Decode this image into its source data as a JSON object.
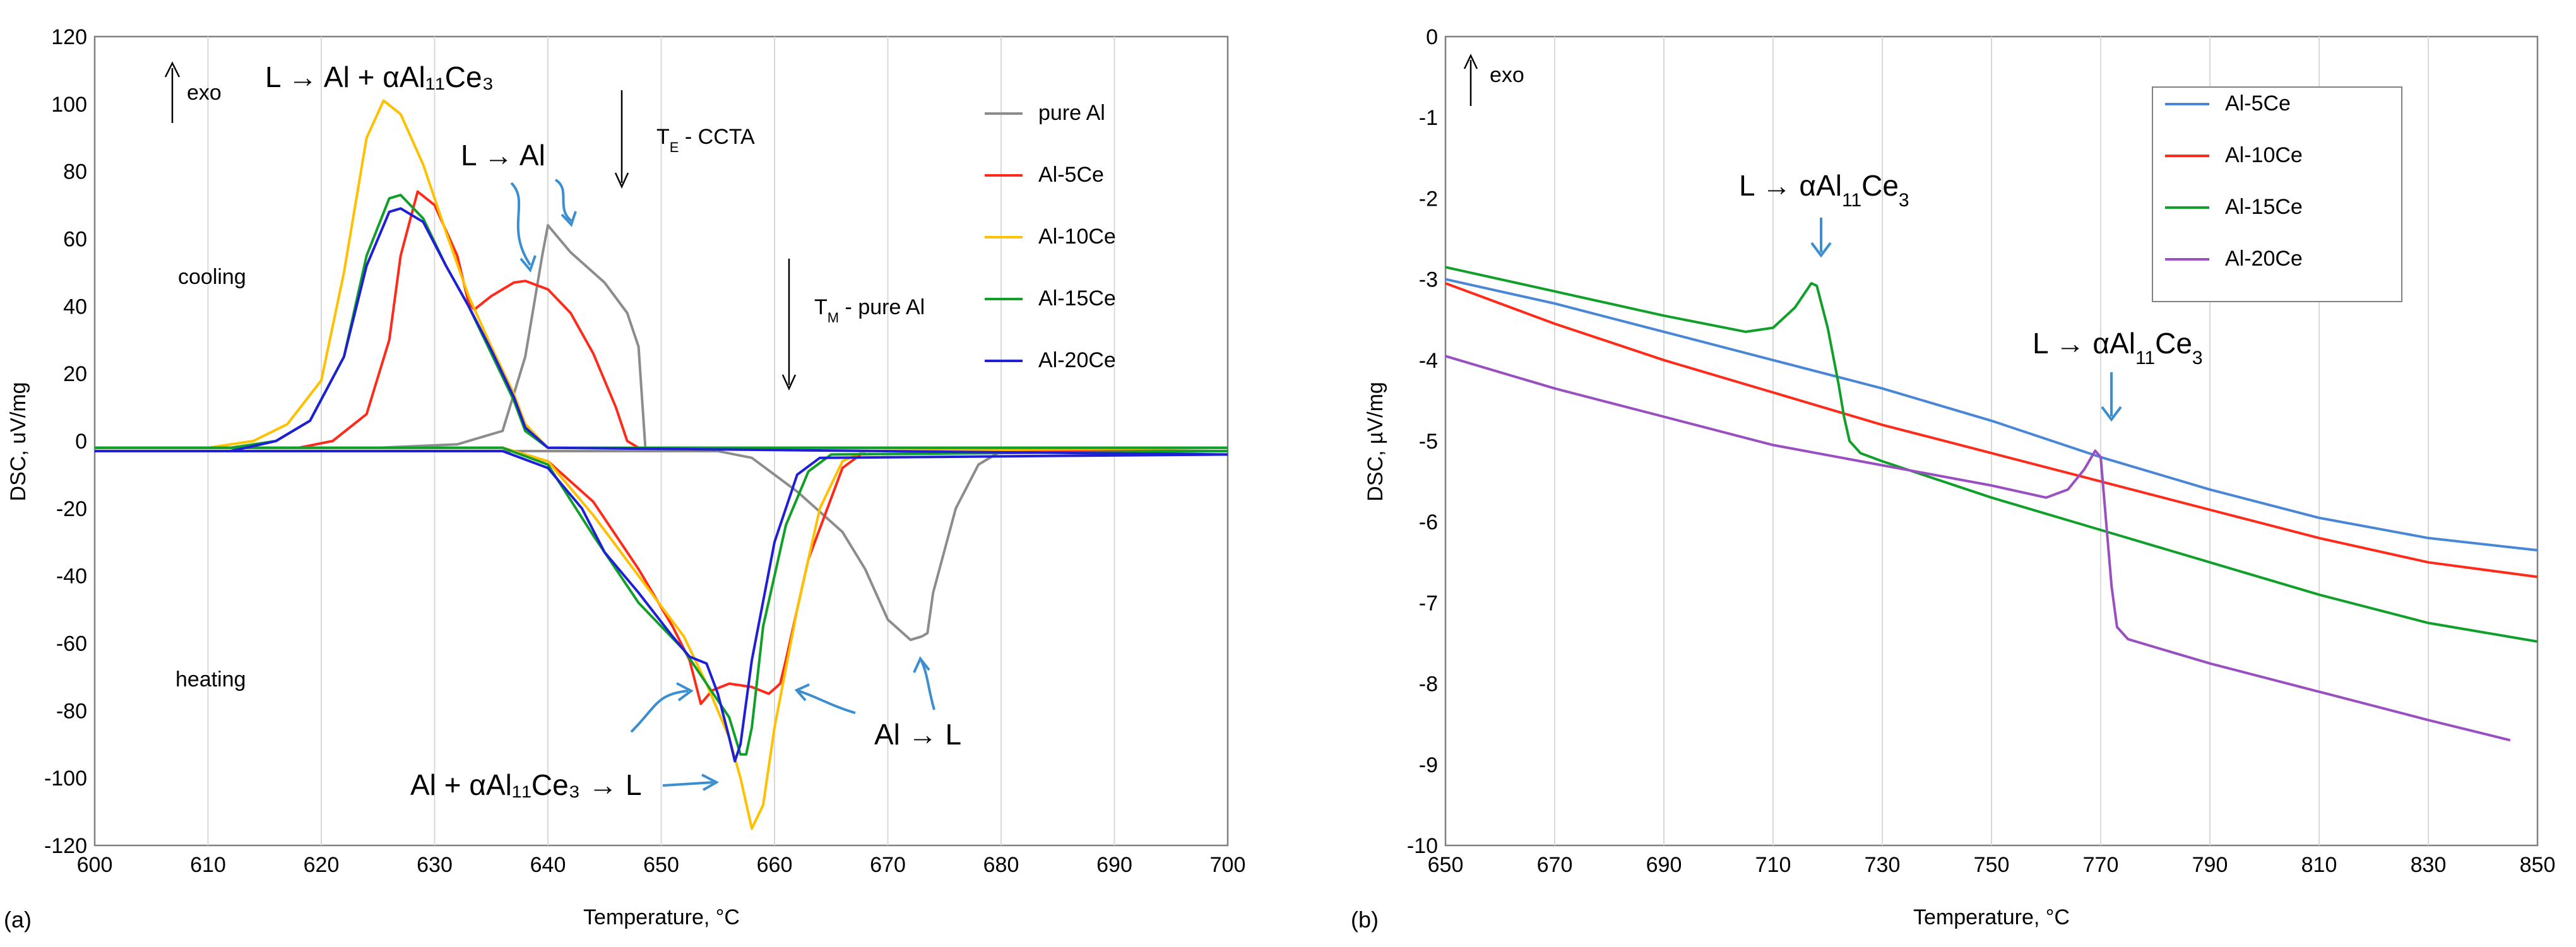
{
  "chart_data": [
    {
      "id": "a",
      "type": "line",
      "panel_label": "(a)",
      "xlabel": "Temperature, °C",
      "ylabel": "DSC, uV/mg",
      "xlim": [
        600,
        700
      ],
      "ylim": [
        -120,
        120
      ],
      "xticks": [
        600,
        610,
        620,
        630,
        640,
        650,
        660,
        670,
        680,
        690,
        700
      ],
      "yticks": [
        120,
        100,
        80,
        60,
        40,
        20,
        0,
        -20,
        -40,
        -60,
        -80,
        -100,
        -120
      ],
      "grid": "vertical",
      "legend": {
        "placement": "top-right",
        "entries": [
          {
            "name": "pure Al",
            "color": "#8c8c8c"
          },
          {
            "name": "Al-5Ce",
            "color": "#ff2a1a"
          },
          {
            "name": "Al-10Ce",
            "color": "#ffc000"
          },
          {
            "name": "Al-15Ce",
            "color": "#10a02a"
          },
          {
            "name": "Al-20Ce",
            "color": "#1f1fd6"
          }
        ]
      },
      "series": [
        {
          "name": "pure Al (cooling)",
          "color": "#8c8c8c",
          "points": [
            [
              600,
              -2
            ],
            [
              625,
              -2
            ],
            [
              632,
              -1
            ],
            [
              636,
              3
            ],
            [
              638,
              25
            ],
            [
              639.5,
              55
            ],
            [
              640,
              64
            ],
            [
              642,
              56
            ],
            [
              645,
              47
            ],
            [
              647,
              38
            ],
            [
              648,
              28
            ],
            [
              648.4,
              8
            ],
            [
              648.6,
              -2
            ],
            [
              700,
              -2
            ]
          ]
        },
        {
          "name": "pure Al (heating)",
          "color": "#8c8c8c",
          "points": [
            [
              600,
              -3
            ],
            [
              655,
              -3
            ],
            [
              658,
              -5
            ],
            [
              662,
              -15
            ],
            [
              666,
              -27
            ],
            [
              668,
              -38
            ],
            [
              670,
              -53
            ],
            [
              671,
              -56
            ],
            [
              672,
              -59
            ],
            [
              673,
              -58
            ],
            [
              673.5,
              -57
            ],
            [
              674,
              -45
            ],
            [
              676,
              -20
            ],
            [
              678,
              -7
            ],
            [
              680,
              -3
            ],
            [
              700,
              -2
            ]
          ]
        },
        {
          "name": "Al-5Ce (cooling)",
          "color": "#ff2a1a",
          "points": [
            [
              600,
              -2
            ],
            [
              618,
              -2
            ],
            [
              621,
              0
            ],
            [
              624,
              8
            ],
            [
              626,
              30
            ],
            [
              627,
              55
            ],
            [
              628.5,
              74
            ],
            [
              630,
              70
            ],
            [
              632,
              55
            ],
            [
              633,
              41
            ],
            [
              633.5,
              39
            ],
            [
              635,
              43
            ],
            [
              637,
              47
            ],
            [
              638,
              47.5
            ],
            [
              640,
              45
            ],
            [
              642,
              38
            ],
            [
              644,
              26
            ],
            [
              646,
              10
            ],
            [
              647,
              0
            ],
            [
              648,
              -2
            ],
            [
              700,
              -2
            ]
          ]
        },
        {
          "name": "Al-5Ce (heating)",
          "color": "#ff2a1a",
          "points": [
            [
              600,
              -2
            ],
            [
              636,
              -2
            ],
            [
              640,
              -6
            ],
            [
              644,
              -18
            ],
            [
              648,
              -38
            ],
            [
              651,
              -55
            ],
            [
              652.5,
              -65
            ],
            [
              653.5,
              -78
            ],
            [
              654.5,
              -74
            ],
            [
              656,
              -72
            ],
            [
              658,
              -73
            ],
            [
              659.5,
              -75
            ],
            [
              660.5,
              -72
            ],
            [
              661,
              -65
            ],
            [
              663,
              -35
            ],
            [
              666,
              -8
            ],
            [
              668,
              -3
            ],
            [
              700,
              -3
            ]
          ]
        },
        {
          "name": "Al-10Ce (cooling)",
          "color": "#ffc000",
          "points": [
            [
              600,
              -2
            ],
            [
              610,
              -2
            ],
            [
              614,
              0
            ],
            [
              617,
              5
            ],
            [
              620,
              18
            ],
            [
              622,
              50
            ],
            [
              624,
              90
            ],
            [
              625.5,
              101
            ],
            [
              627,
              97
            ],
            [
              629,
              82
            ],
            [
              631,
              62
            ],
            [
              633,
              43
            ],
            [
              635,
              28
            ],
            [
              637,
              14
            ],
            [
              638,
              5
            ],
            [
              640,
              -2
            ],
            [
              700,
              -2
            ]
          ]
        },
        {
          "name": "Al-10Ce (heating)",
          "color": "#ffc000",
          "points": [
            [
              600,
              -2
            ],
            [
              636,
              -2
            ],
            [
              640,
              -6
            ],
            [
              644,
              -22
            ],
            [
              648,
              -40
            ],
            [
              652,
              -58
            ],
            [
              654,
              -72
            ],
            [
              656,
              -88
            ],
            [
              657,
              -100
            ],
            [
              658,
              -115
            ],
            [
              659,
              -108
            ],
            [
              660,
              -85
            ],
            [
              662,
              -50
            ],
            [
              664,
              -20
            ],
            [
              666,
              -6
            ],
            [
              668,
              -3
            ],
            [
              700,
              -2
            ]
          ]
        },
        {
          "name": "Al-15Ce (cooling)",
          "color": "#10a02a",
          "points": [
            [
              600,
              -2
            ],
            [
              612,
              -2
            ],
            [
              616,
              0
            ],
            [
              619,
              6
            ],
            [
              622,
              25
            ],
            [
              624,
              55
            ],
            [
              626,
              72
            ],
            [
              627,
              73
            ],
            [
              629,
              66
            ],
            [
              631,
              52
            ],
            [
              633,
              40
            ],
            [
              635,
              26
            ],
            [
              637,
              12
            ],
            [
              638,
              3
            ],
            [
              640,
              -2
            ],
            [
              700,
              -2
            ]
          ]
        },
        {
          "name": "Al-15Ce (heating)",
          "color": "#10a02a",
          "points": [
            [
              600,
              -2
            ],
            [
              636,
              -2
            ],
            [
              640,
              -7
            ],
            [
              644,
              -28
            ],
            [
              648,
              -48
            ],
            [
              652,
              -62
            ],
            [
              654,
              -72
            ],
            [
              656,
              -82
            ],
            [
              657,
              -93
            ],
            [
              657.5,
              -93
            ],
            [
              658,
              -85
            ],
            [
              659,
              -55
            ],
            [
              661,
              -25
            ],
            [
              663,
              -9
            ],
            [
              665,
              -4
            ],
            [
              700,
              -3
            ]
          ]
        },
        {
          "name": "Al-20Ce (cooling)",
          "color": "#1f1fd6",
          "points": [
            [
              600,
              -3
            ],
            [
              612,
              -3
            ],
            [
              616,
              0
            ],
            [
              619,
              6
            ],
            [
              622,
              25
            ],
            [
              624,
              52
            ],
            [
              626,
              68
            ],
            [
              627,
              69
            ],
            [
              629,
              65
            ],
            [
              631,
              52
            ],
            [
              633,
              40
            ],
            [
              635,
              27
            ],
            [
              637,
              13
            ],
            [
              638,
              4
            ],
            [
              640,
              -2
            ],
            [
              700,
              -4
            ]
          ]
        },
        {
          "name": "Al-20Ce (heating)",
          "color": "#1f1fd6",
          "points": [
            [
              600,
              -3
            ],
            [
              636,
              -3
            ],
            [
              640,
              -8
            ],
            [
              643,
              -20
            ],
            [
              645,
              -33
            ],
            [
              648,
              -45
            ],
            [
              651,
              -58
            ],
            [
              652.5,
              -64
            ],
            [
              654,
              -66
            ],
            [
              655,
              -75
            ],
            [
              656,
              -88
            ],
            [
              656.5,
              -95
            ],
            [
              657,
              -90
            ],
            [
              658,
              -65
            ],
            [
              660,
              -30
            ],
            [
              662,
              -10
            ],
            [
              664,
              -5
            ],
            [
              700,
              -4
            ]
          ]
        }
      ],
      "annotations": {
        "exo": "exo",
        "eutectic_reaction": "L → Al + αAl₁₁Ce₃",
        "al_solidification": "L → Al",
        "te_label": "T",
        "te_sub": "E",
        "te_rest": " - CCTA",
        "tm_label": "T",
        "tm_sub": "M",
        "tm_rest": " - pure Al",
        "cooling": "cooling",
        "heating": "heating",
        "melting_eutectic": "Al + αAl₁₁Ce₃ → L",
        "al_melting": "Al → L"
      }
    },
    {
      "id": "b",
      "type": "line",
      "panel_label": "(b)",
      "xlabel": "Temperature, °C",
      "ylabel": "DSC, µV/mg",
      "xlim": [
        650,
        850
      ],
      "ylim": [
        -10,
        0
      ],
      "xticks": [
        650,
        670,
        690,
        710,
        730,
        750,
        770,
        790,
        810,
        830,
        850
      ],
      "yticks": [
        0,
        -1,
        -2,
        -3,
        -4,
        -5,
        -6,
        -7,
        -8,
        -9,
        -10
      ],
      "grid": "vertical",
      "legend": {
        "placement": "top-right",
        "entries": [
          {
            "name": "Al-5Ce",
            "color": "#4a86d6"
          },
          {
            "name": "Al-10Ce",
            "color": "#ff2a1a"
          },
          {
            "name": "Al-15Ce",
            "color": "#10a02a"
          },
          {
            "name": "Al-20Ce",
            "color": "#9a4fc0"
          }
        ]
      },
      "series": [
        {
          "name": "Al-5Ce",
          "color": "#4a86d6",
          "points": [
            [
              650,
              -3.0
            ],
            [
              670,
              -3.3
            ],
            [
              690,
              -3.65
            ],
            [
              710,
              -4.0
            ],
            [
              730,
              -4.35
            ],
            [
              750,
              -4.75
            ],
            [
              770,
              -5.2
            ],
            [
              790,
              -5.6
            ],
            [
              810,
              -5.95
            ],
            [
              830,
              -6.2
            ],
            [
              850,
              -6.35
            ]
          ]
        },
        {
          "name": "Al-10Ce",
          "color": "#ff2a1a",
          "points": [
            [
              650,
              -3.05
            ],
            [
              670,
              -3.55
            ],
            [
              690,
              -4.0
            ],
            [
              710,
              -4.4
            ],
            [
              730,
              -4.8
            ],
            [
              750,
              -5.15
            ],
            [
              770,
              -5.5
            ],
            [
              790,
              -5.85
            ],
            [
              810,
              -6.2
            ],
            [
              830,
              -6.5
            ],
            [
              850,
              -6.68
            ]
          ]
        },
        {
          "name": "Al-15Ce",
          "color": "#10a02a",
          "points": [
            [
              650,
              -2.85
            ],
            [
              670,
              -3.15
            ],
            [
              690,
              -3.45
            ],
            [
              705,
              -3.65
            ],
            [
              710,
              -3.6
            ],
            [
              714,
              -3.35
            ],
            [
              717,
              -3.05
            ],
            [
              718,
              -3.08
            ],
            [
              720,
              -3.6
            ],
            [
              722,
              -4.3
            ],
            [
              723,
              -4.7
            ],
            [
              724,
              -5.0
            ],
            [
              726,
              -5.15
            ],
            [
              730,
              -5.25
            ],
            [
              750,
              -5.7
            ],
            [
              770,
              -6.1
            ],
            [
              790,
              -6.5
            ],
            [
              810,
              -6.9
            ],
            [
              830,
              -7.25
            ],
            [
              850,
              -7.48
            ]
          ]
        },
        {
          "name": "Al-20Ce",
          "color": "#9a4fc0",
          "points": [
            [
              650,
              -3.95
            ],
            [
              670,
              -4.35
            ],
            [
              690,
              -4.7
            ],
            [
              710,
              -5.05
            ],
            [
              730,
              -5.3
            ],
            [
              750,
              -5.55
            ],
            [
              760,
              -5.7
            ],
            [
              764,
              -5.6
            ],
            [
              767,
              -5.35
            ],
            [
              769,
              -5.12
            ],
            [
              770,
              -5.2
            ],
            [
              771,
              -6.0
            ],
            [
              772,
              -6.8
            ],
            [
              773,
              -7.3
            ],
            [
              775,
              -7.45
            ],
            [
              790,
              -7.75
            ],
            [
              810,
              -8.1
            ],
            [
              830,
              -8.45
            ],
            [
              845,
              -8.7
            ]
          ]
        }
      ],
      "annotations": {
        "exo": "exo",
        "peak1_prefix": "L → αAl",
        "peak1_sub": "11",
        "peak1_suffix": "Ce",
        "peak1_sub2": "3",
        "peak2_prefix": "L → αAl",
        "peak2_sub": "11",
        "peak2_suffix": "Ce",
        "peak2_sub2": "3"
      }
    }
  ]
}
